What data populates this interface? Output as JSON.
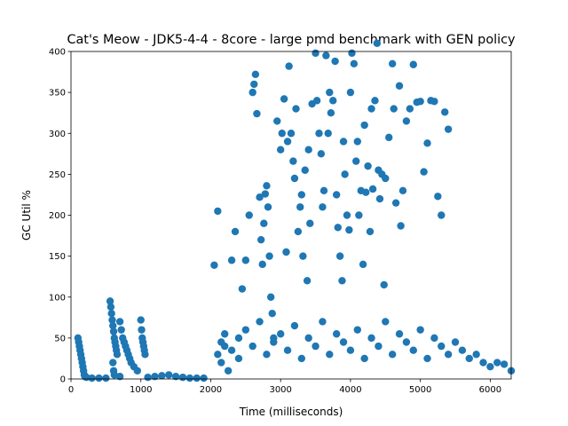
{
  "chart_data": {
    "type": "scatter",
    "title": "Cat's Meow - JDK5-4-4 - 8core -  large pmd benchmark with GEN policy",
    "xlabel": "Time (milliseconds)",
    "ylabel": "GC Util %",
    "xlim": [
      0,
      6300
    ],
    "ylim": [
      0,
      400
    ],
    "xticks": [
      0,
      1000,
      2000,
      3000,
      4000,
      5000,
      6000
    ],
    "yticks": [
      0,
      50,
      100,
      150,
      200,
      250,
      300,
      350,
      400
    ],
    "grid": false,
    "legend": "none",
    "marker_color": "#1f77b4",
    "series": [
      {
        "points": [
          [
            100,
            50
          ],
          [
            110,
            45
          ],
          [
            120,
            40
          ],
          [
            130,
            35
          ],
          [
            140,
            30
          ],
          [
            150,
            25
          ],
          [
            160,
            20
          ],
          [
            170,
            15
          ],
          [
            180,
            10
          ],
          [
            190,
            5
          ],
          [
            200,
            3
          ],
          [
            220,
            2
          ],
          [
            300,
            1
          ],
          [
            400,
            1
          ],
          [
            500,
            1
          ],
          [
            560,
            95
          ],
          [
            570,
            88
          ],
          [
            580,
            80
          ],
          [
            590,
            72
          ],
          [
            600,
            65
          ],
          [
            610,
            58
          ],
          [
            620,
            50
          ],
          [
            630,
            45
          ],
          [
            640,
            40
          ],
          [
            650,
            35
          ],
          [
            660,
            30
          ],
          [
            600,
            20
          ],
          [
            610,
            10
          ],
          [
            620,
            5
          ],
          [
            700,
            3
          ],
          [
            700,
            70
          ],
          [
            720,
            60
          ],
          [
            740,
            50
          ],
          [
            760,
            45
          ],
          [
            780,
            40
          ],
          [
            800,
            35
          ],
          [
            820,
            30
          ],
          [
            840,
            25
          ],
          [
            860,
            20
          ],
          [
            900,
            15
          ],
          [
            950,
            10
          ],
          [
            1000,
            72
          ],
          [
            1010,
            60
          ],
          [
            1020,
            50
          ],
          [
            1030,
            45
          ],
          [
            1040,
            40
          ],
          [
            1050,
            35
          ],
          [
            1060,
            30
          ],
          [
            1100,
            2
          ],
          [
            1200,
            3
          ],
          [
            1300,
            4
          ],
          [
            1400,
            5
          ],
          [
            1500,
            3
          ],
          [
            1600,
            2
          ],
          [
            1700,
            1
          ],
          [
            1800,
            1
          ],
          [
            1900,
            1
          ],
          [
            2050,
            139
          ],
          [
            2100,
            205
          ],
          [
            2150,
            20
          ],
          [
            2200,
            40
          ],
          [
            2250,
            10
          ],
          [
            2300,
            145
          ],
          [
            2350,
            180
          ],
          [
            2400,
            50
          ],
          [
            2450,
            110
          ],
          [
            2500,
            145
          ],
          [
            2550,
            200
          ],
          [
            2600,
            350
          ],
          [
            2620,
            360
          ],
          [
            2640,
            372
          ],
          [
            2660,
            324
          ],
          [
            2700,
            222
          ],
          [
            2720,
            170
          ],
          [
            2740,
            140
          ],
          [
            2760,
            190
          ],
          [
            2780,
            226
          ],
          [
            2800,
            236
          ],
          [
            2820,
            210
          ],
          [
            2840,
            150
          ],
          [
            2860,
            100
          ],
          [
            2880,
            80
          ],
          [
            2900,
            50
          ],
          [
            2950,
            315
          ],
          [
            3000,
            280
          ],
          [
            3020,
            300
          ],
          [
            3050,
            342
          ],
          [
            3080,
            155
          ],
          [
            3100,
            290
          ],
          [
            3120,
            382
          ],
          [
            3150,
            300
          ],
          [
            3180,
            266
          ],
          [
            3200,
            245
          ],
          [
            3220,
            330
          ],
          [
            3250,
            180
          ],
          [
            3280,
            210
          ],
          [
            3300,
            225
          ],
          [
            3320,
            150
          ],
          [
            3350,
            255
          ],
          [
            3380,
            120
          ],
          [
            3400,
            280
          ],
          [
            3420,
            190
          ],
          [
            3450,
            336
          ],
          [
            3500,
            398
          ],
          [
            3520,
            340
          ],
          [
            3550,
            300
          ],
          [
            3580,
            275
          ],
          [
            3600,
            210
          ],
          [
            3620,
            230
          ],
          [
            3650,
            395
          ],
          [
            3680,
            300
          ],
          [
            3700,
            350
          ],
          [
            3720,
            325
          ],
          [
            3750,
            340
          ],
          [
            3780,
            388
          ],
          [
            3800,
            225
          ],
          [
            3820,
            185
          ],
          [
            3850,
            150
          ],
          [
            3880,
            120
          ],
          [
            3900,
            290
          ],
          [
            3920,
            250
          ],
          [
            3950,
            200
          ],
          [
            3980,
            182
          ],
          [
            4000,
            350
          ],
          [
            4020,
            398
          ],
          [
            4050,
            385
          ],
          [
            4080,
            266
          ],
          [
            4100,
            290
          ],
          [
            4120,
            200
          ],
          [
            4150,
            230
          ],
          [
            4180,
            140
          ],
          [
            4200,
            310
          ],
          [
            4220,
            228
          ],
          [
            4250,
            260
          ],
          [
            4280,
            180
          ],
          [
            4300,
            330
          ],
          [
            4320,
            232
          ],
          [
            4350,
            340
          ],
          [
            4380,
            410
          ],
          [
            4400,
            255
          ],
          [
            4420,
            220
          ],
          [
            4450,
            250
          ],
          [
            4480,
            115
          ],
          [
            4500,
            245
          ],
          [
            4550,
            295
          ],
          [
            4600,
            385
          ],
          [
            4620,
            330
          ],
          [
            4650,
            215
          ],
          [
            4700,
            358
          ],
          [
            4720,
            187
          ],
          [
            4750,
            230
          ],
          [
            4800,
            315
          ],
          [
            4850,
            330
          ],
          [
            4900,
            384
          ],
          [
            4950,
            338
          ],
          [
            5000,
            339
          ],
          [
            5050,
            253
          ],
          [
            5100,
            288
          ],
          [
            5150,
            340
          ],
          [
            5200,
            339
          ],
          [
            5250,
            223
          ],
          [
            5300,
            200
          ],
          [
            5350,
            326
          ],
          [
            5400,
            305
          ],
          [
            2100,
            30
          ],
          [
            2150,
            45
          ],
          [
            2200,
            55
          ],
          [
            2300,
            35
          ],
          [
            2400,
            25
          ],
          [
            2500,
            60
          ],
          [
            2600,
            40
          ],
          [
            2700,
            70
          ],
          [
            2800,
            30
          ],
          [
            2900,
            45
          ],
          [
            3000,
            55
          ],
          [
            3100,
            35
          ],
          [
            3200,
            65
          ],
          [
            3300,
            25
          ],
          [
            3400,
            50
          ],
          [
            3500,
            40
          ],
          [
            3600,
            70
          ],
          [
            3700,
            30
          ],
          [
            3800,
            55
          ],
          [
            3900,
            45
          ],
          [
            4000,
            35
          ],
          [
            4100,
            60
          ],
          [
            4200,
            25
          ],
          [
            4300,
            50
          ],
          [
            4400,
            40
          ],
          [
            4500,
            70
          ],
          [
            4600,
            30
          ],
          [
            4700,
            55
          ],
          [
            4800,
            45
          ],
          [
            4900,
            35
          ],
          [
            5000,
            60
          ],
          [
            5100,
            25
          ],
          [
            5200,
            50
          ],
          [
            5300,
            40
          ],
          [
            5400,
            30
          ],
          [
            5500,
            45
          ],
          [
            5600,
            35
          ],
          [
            5700,
            25
          ],
          [
            5800,
            30
          ],
          [
            5900,
            20
          ],
          [
            6000,
            15
          ],
          [
            6100,
            20
          ],
          [
            6200,
            18
          ],
          [
            6300,
            10
          ]
        ]
      }
    ]
  }
}
